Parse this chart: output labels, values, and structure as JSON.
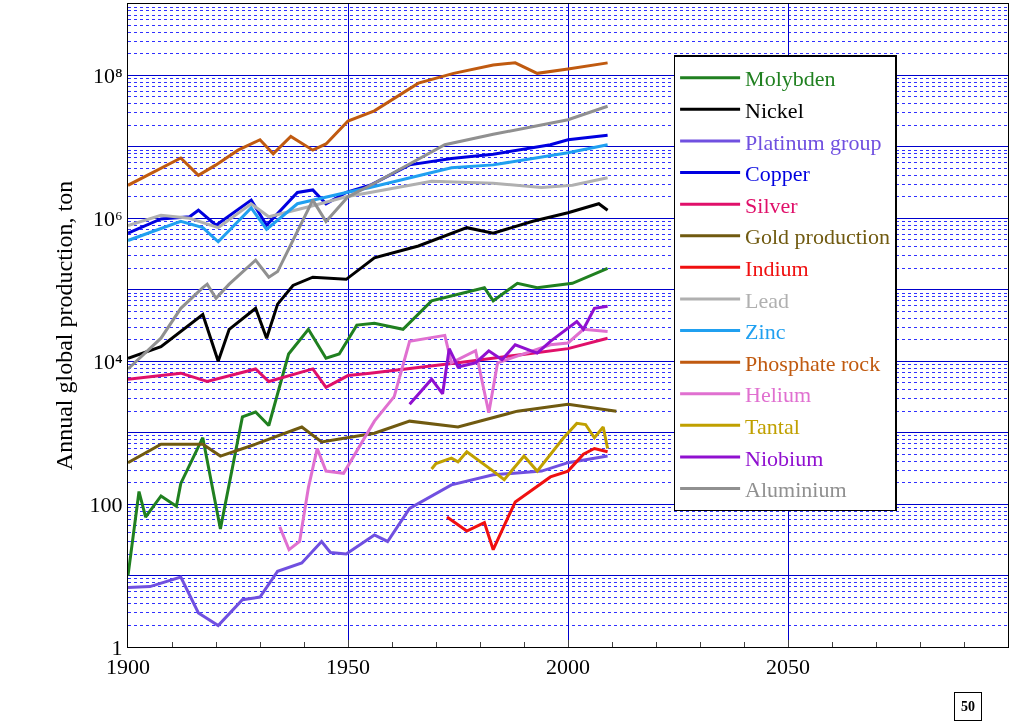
{
  "chart_data": {
    "type": "line",
    "ylabel": "Annual global production, ton",
    "log": "y",
    "grid": true,
    "legend": "top right",
    "line_style": "solid",
    "marker": "none",
    "xlim": [
      1900,
      2100
    ],
    "xticks": [
      1900,
      1950,
      2000,
      2050
    ],
    "ylim": [
      1,
      1000000000
    ],
    "yticks": [
      1,
      {
        "value": 10,
        "label": null
      },
      100,
      {
        "value": 1000,
        "label": null
      },
      {
        "value": 10000,
        "label": "10⁴"
      },
      {
        "value": 100000,
        "label": null
      },
      {
        "value": 1000000,
        "label": "10⁶"
      },
      {
        "value": 10000000,
        "label": null
      },
      {
        "value": 100000000,
        "label": "10⁸"
      },
      {
        "value": 1000000000,
        "label": null
      },
      {
        "value": 2,
        "label": null
      },
      {
        "value": 3,
        "label": null
      },
      {
        "value": 4,
        "label": null
      },
      {
        "value": 5,
        "label": null
      },
      {
        "value": 6,
        "label": null
      },
      {
        "value": 7,
        "label": null
      },
      {
        "value": 8,
        "label": null
      },
      {
        "value": 9,
        "label": null
      },
      {
        "value": 20,
        "label": null
      },
      {
        "value": 30,
        "label": null
      },
      {
        "value": 40,
        "label": null
      },
      {
        "value": 50,
        "label": null
      },
      {
        "value": 60,
        "label": null
      },
      {
        "value": 70,
        "label": null
      },
      {
        "value": 80,
        "label": null
      },
      {
        "value": 90,
        "label": null
      },
      {
        "value": 200,
        "label": null
      },
      {
        "value": 300,
        "label": null
      },
      {
        "value": 400,
        "label": null
      },
      {
        "value": 500,
        "label": null
      },
      {
        "value": 600,
        "label": null
      },
      {
        "value": 700,
        "label": null
      },
      {
        "value": 800,
        "label": null
      },
      {
        "value": 900,
        "label": null
      },
      {
        "value": 2000,
        "label": null
      },
      {
        "value": 3000,
        "label": null
      },
      {
        "value": 4000,
        "label": null
      },
      {
        "value": 5000,
        "label": null
      },
      {
        "value": 6000,
        "label": null
      },
      {
        "value": 7000,
        "label": null
      },
      {
        "value": 8000,
        "label": null
      },
      {
        "value": 9000,
        "label": null
      },
      {
        "value": 20000,
        "label": null
      },
      {
        "value": 30000,
        "label": null
      },
      {
        "value": 40000,
        "label": null
      },
      {
        "value": 50000,
        "label": null
      },
      {
        "value": 60000,
        "label": null
      },
      {
        "value": 70000,
        "label": null
      },
      {
        "value": 80000,
        "label": null
      },
      {
        "value": 90000,
        "label": null
      },
      {
        "value": 200000,
        "label": null
      },
      {
        "value": 300000,
        "label": null
      },
      {
        "value": 400000,
        "label": null
      },
      {
        "value": 500000,
        "label": null
      },
      {
        "value": 600000,
        "label": null
      },
      {
        "value": 700000,
        "label": null
      },
      {
        "value": 800000,
        "label": null
      },
      {
        "value": 900000,
        "label": null
      },
      {
        "value": 2000000,
        "label": null
      },
      {
        "value": 3000000,
        "label": null
      },
      {
        "value": 4000000,
        "label": null
      },
      {
        "value": 5000000,
        "label": null
      },
      {
        "value": 6000000,
        "label": null
      },
      {
        "value": 7000000,
        "label": null
      },
      {
        "value": 8000000,
        "label": null
      },
      {
        "value": 9000000,
        "label": null
      },
      {
        "value": 20000000,
        "label": null
      },
      {
        "value": 30000000,
        "label": null
      },
      {
        "value": 40000000,
        "label": null
      },
      {
        "value": 50000000,
        "label": null
      },
      {
        "value": 60000000,
        "label": null
      },
      {
        "value": 70000000,
        "label": null
      },
      {
        "value": 80000000,
        "label": null
      },
      {
        "value": 90000000,
        "label": null
      },
      {
        "value": 200000000,
        "label": null
      },
      {
        "value": 300000000,
        "label": null
      },
      {
        "value": 400000000,
        "label": null
      },
      {
        "value": 500000000,
        "label": null
      },
      {
        "value": 600000000,
        "label": null
      },
      {
        "value": 700000000,
        "label": null
      },
      {
        "value": 800000000,
        "label": null
      },
      {
        "value": 900000000,
        "label": null
      }
    ],
    "annotations": [
      "50"
    ],
    "series": [
      {
        "name": "Molybden",
        "color": "#208020",
        "x": [
          1900,
          1902.5,
          1904,
          1907.5,
          1911,
          1912,
          1917,
          1921,
          1926,
          1929,
          1932,
          1936.5,
          1941,
          1945,
          1948,
          1952,
          1956,
          1962.5,
          1969,
          1981,
          1983,
          1988.5,
          1993,
          2001,
          2009
        ],
        "values": [
          10,
          150,
          66,
          130,
          93,
          195,
          850,
          45,
          1660,
          1950,
          1260,
          12600,
          28000,
          11000,
          12600,
          32000,
          34000,
          28000,
          70000,
          107000,
          70000,
          123000,
          107000,
          123000,
          200000
        ]
      },
      {
        "name": "Nickel",
        "color": "#000000",
        "x": [
          1900,
          1907.5,
          1917,
          1920.5,
          1923,
          1929,
          1931.5,
          1934,
          1937.5,
          1942,
          1949.6,
          1956,
          1966,
          1977,
          1983,
          1992,
          2000,
          2007,
          2009
        ],
        "values": [
          11000,
          16000,
          45000,
          10000,
          28000,
          55000,
          21000,
          63000,
          115000,
          150000,
          140000,
          280000,
          410000,
          740000,
          620000,
          910000,
          1200000,
          1600000,
          1300000
        ]
      },
      {
        "name": "Platinum group",
        "color": "#7050e0",
        "x": [
          1900,
          1905,
          1912,
          1916,
          1920.5,
          1926,
          1930,
          1934,
          1939.5,
          1944,
          1946,
          1949.6,
          1956,
          1959,
          1964,
          1973.5,
          1983,
          1994,
          2000,
          2009
        ],
        "values": [
          6.8,
          7,
          9.5,
          3,
          2,
          4.6,
          5,
          11.5,
          15,
          30,
          21,
          20,
          37,
          30,
          87,
          186,
          257,
          290,
          380,
          470
        ]
      },
      {
        "name": "Copper",
        "color": "#0000e0",
        "x": [
          1900,
          1907.5,
          1914,
          1916,
          1920,
          1928,
          1931.5,
          1938.5,
          1942,
          1945,
          1949.6,
          1955,
          1964,
          1973.5,
          1983,
          1996,
          2000,
          2009
        ],
        "values": [
          620000,
          980000,
          1050000,
          1300000,
          800000,
          1800000,
          800000,
          2300000,
          2500000,
          1600000,
          2300000,
          2900000,
          5600000,
          6900000,
          7900000,
          10700000,
          12600000,
          14500000
        ]
      },
      {
        "name": "Silver",
        "color": "#e0106a",
        "x": [
          1900,
          1912,
          1918,
          1929,
          1932,
          1942,
          1945,
          1950,
          1955,
          1975,
          2000,
          2009
        ],
        "values": [
          5600,
          6800,
          5200,
          7800,
          5200,
          7800,
          4300,
          6300,
          6800,
          9500,
          15000,
          21000
        ]
      },
      {
        "name": "Gold production",
        "color": "#705a10",
        "x": [
          1900,
          1907.5,
          1917,
          1921,
          1929,
          1939.5,
          1944,
          1956,
          1964,
          1975,
          1988.5,
          2000,
          2011
        ],
        "values": [
          380,
          690,
          690,
          470,
          690,
          1200,
          740,
          980,
          1450,
          1200,
          2000,
          2500,
          2000
        ]
      },
      {
        "name": "Indium",
        "color": "#f01010",
        "x": [
          1972.5,
          1977,
          1981,
          1983,
          1985.5,
          1988,
          1992,
          1996,
          2000,
          2003.5,
          2006,
          2009
        ],
        "values": [
          66,
          42,
          55,
          23,
          50,
          107,
          160,
          240,
          290,
          500,
          600,
          540
        ]
      },
      {
        "name": "Lead",
        "color": "#b0b0b0",
        "x": [
          1900,
          1907.5,
          1914,
          1920.5,
          1928,
          1932,
          1942,
          1949.6,
          1955,
          1969,
          1983,
          1994,
          2001,
          2009
        ],
        "values": [
          790000,
          1100000,
          1000000,
          740000,
          1600000,
          1050000,
          1500000,
          2000000,
          2300000,
          3300000,
          3100000,
          2700000,
          2900000,
          3700000
        ]
      },
      {
        "name": "Zinc",
        "color": "#20a0f0",
        "x": [
          1900,
          1912,
          1917,
          1920.5,
          1928,
          1931.5,
          1938.5,
          1949.6,
          1955,
          1973.5,
          1983,
          2000,
          2009
        ],
        "values": [
          490000,
          910000,
          740000,
          470000,
          1400000,
          700000,
          1600000,
          2300000,
          2700000,
          5100000,
          5600000,
          8300000,
          10700000
        ]
      },
      {
        "name": "Phosphate rock",
        "color": "#c05a10",
        "x": [
          1900,
          1912,
          1916,
          1920,
          1925,
          1930,
          1933,
          1937,
          1942,
          1945,
          1950,
          1956,
          1966,
          1974,
          1983,
          1988,
          1993,
          2000,
          2009
        ],
        "values": [
          2900000,
          7000000,
          4000000,
          5600000,
          9000000,
          12600000,
          8000000,
          14000000,
          9000000,
          11000000,
          23000000,
          32000000,
          78000000,
          107000000,
          140000000,
          150000000,
          107000000,
          123000000,
          150000000
        ]
      },
      {
        "name": "Helium",
        "color": "#e070d0",
        "x": [
          1934.5,
          1936.6,
          1939,
          1941,
          1943,
          1945,
          1949,
          1956,
          1960.5,
          1964,
          1972,
          1973.5,
          1979,
          1982,
          1984,
          1996,
          2000,
          2003.5,
          2009
        ],
        "values": [
          48,
          23,
          30,
          170,
          600,
          290,
          270,
          1450,
          3200,
          19000,
          23000,
          9500,
          14000,
          1900,
          9500,
          17000,
          18000,
          28000,
          26000
        ]
      },
      {
        "name": "Tantal",
        "color": "#c0a000",
        "x": [
          1969,
          1970,
          1973.5,
          1975,
          1977,
          1983,
          1985.5,
          1990,
          1993,
          1999,
          2002,
          2004,
          2006,
          2008,
          2009
        ],
        "values": [
          310,
          370,
          440,
          390,
          540,
          290,
          220,
          470,
          290,
          850,
          1350,
          1300,
          850,
          1200,
          600
        ]
      },
      {
        "name": "Niobium",
        "color": "#9010d0",
        "x": [
          1964,
          1969,
          1971.5,
          1973,
          1975,
          1979,
          1982,
          1985,
          1988,
          1993,
          1996,
          2002,
          2003.5,
          2006,
          2009
        ],
        "values": [
          2500,
          5600,
          3500,
          15000,
          8300,
          9500,
          14000,
          10500,
          17000,
          13000,
          19000,
          36000,
          28000,
          55000,
          59000
        ]
      },
      {
        "name": "Aluminium",
        "color": "#909090",
        "x": [
          1900,
          1907.5,
          1912,
          1917,
          1918,
          1920,
          1923,
          1929,
          1932,
          1934,
          1942,
          1945,
          1950,
          1956,
          1972,
          1983,
          2000,
          2009
        ],
        "values": [
          7800,
          21000,
          55000,
          107000,
          120000,
          76000,
          120000,
          260000,
          150000,
          180000,
          1800000,
          900000,
          2000000,
          3100000,
          10700000,
          15000000,
          24000000,
          37000000
        ]
      }
    ]
  }
}
